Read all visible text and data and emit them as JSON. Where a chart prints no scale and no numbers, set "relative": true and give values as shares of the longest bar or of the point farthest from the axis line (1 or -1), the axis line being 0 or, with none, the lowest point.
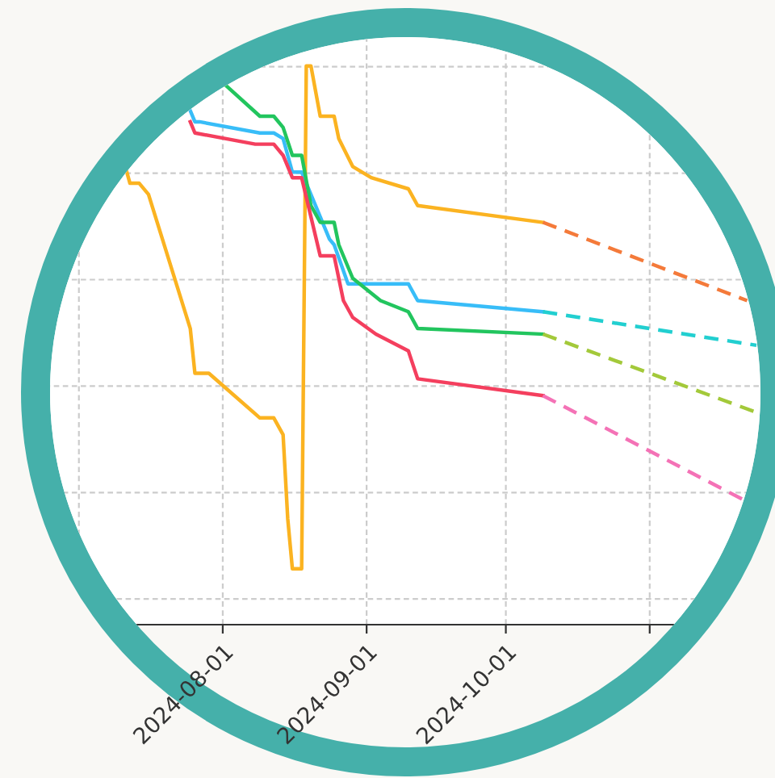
{
  "chart_data": {
    "type": "line",
    "relative": true,
    "grid": true,
    "tick_labels": "x",
    "xlim": [
      "2024-06-14",
      "2024-11-28"
    ],
    "xticks": [
      {
        "value": "2024-07-01",
        "label": null
      },
      {
        "value": "2024-08-01",
        "label": "2024-08-01"
      },
      {
        "value": "2024-09-01",
        "label": "2024-09-01"
      },
      {
        "value": "2024-10-01",
        "label": "2024-10-01"
      },
      {
        "value": "2024-11-01",
        "label": null
      }
    ],
    "series": [
      {
        "color": "#fbb321",
        "line_style": "solid",
        "x": [
          "2024-07-11",
          "2024-07-12",
          "2024-07-14",
          "2024-07-16",
          "2024-07-25",
          "2024-07-26",
          "2024-07-29",
          "2024-08-09",
          "2024-08-12",
          "2024-08-14",
          "2024-08-15",
          "2024-08-16",
          "2024-08-18",
          "2024-08-19",
          "2024-08-20",
          "2024-08-22",
          "2024-08-25",
          "2024-08-26",
          "2024-08-29",
          "2024-09-02",
          "2024-09-10",
          "2024-09-12",
          "2024-10-09"
        ],
        "values": [
          0.82,
          0.79,
          0.79,
          0.77,
          0.53,
          0.45,
          0.45,
          0.37,
          0.37,
          0.34,
          0.19,
          0.1,
          0.1,
          1.0,
          1.0,
          0.91,
          0.91,
          0.87,
          0.82,
          0.8,
          0.78,
          0.75,
          0.72
        ]
      },
      {
        "color": "#38bdf8",
        "line_style": "solid",
        "x": [
          "2024-07-25",
          "2024-07-26",
          "2024-07-27",
          "2024-08-09",
          "2024-08-12",
          "2024-08-14",
          "2024-08-16",
          "2024-08-18",
          "2024-08-24",
          "2024-08-25",
          "2024-08-28",
          "2024-09-10",
          "2024-09-12",
          "2024-10-09"
        ],
        "values": [
          0.92,
          0.9,
          0.9,
          0.88,
          0.88,
          0.87,
          0.81,
          0.81,
          0.69,
          0.68,
          0.61,
          0.61,
          0.58,
          0.56
        ]
      },
      {
        "color": "#22c55e",
        "line_style": "solid",
        "x": [
          "2024-08-01",
          "2024-08-09",
          "2024-08-12",
          "2024-08-14",
          "2024-08-16",
          "2024-08-18",
          "2024-08-20",
          "2024-08-22",
          "2024-08-25",
          "2024-08-26",
          "2024-08-29",
          "2024-09-04",
          "2024-09-10",
          "2024-09-12",
          "2024-10-09"
        ],
        "values": [
          0.97,
          0.91,
          0.91,
          0.89,
          0.84,
          0.84,
          0.75,
          0.72,
          0.72,
          0.68,
          0.62,
          0.58,
          0.56,
          0.53,
          0.52
        ]
      },
      {
        "color": "#f43f5e",
        "line_style": "solid",
        "x": [
          "2024-07-25",
          "2024-07-26",
          "2024-08-08",
          "2024-08-12",
          "2024-08-14",
          "2024-08-16",
          "2024-08-18",
          "2024-08-22",
          "2024-08-25",
          "2024-08-27",
          "2024-08-29",
          "2024-09-03",
          "2024-09-10",
          "2024-09-12",
          "2024-10-09"
        ],
        "values": [
          0.9,
          0.88,
          0.86,
          0.86,
          0.84,
          0.8,
          0.8,
          0.66,
          0.66,
          0.58,
          0.55,
          0.52,
          0.49,
          0.44,
          0.41
        ]
      },
      {
        "color": "#f47a3a",
        "line_style": "dashed",
        "x": [
          "2024-10-09",
          "2024-11-22"
        ],
        "values": [
          0.72,
          0.58
        ]
      },
      {
        "color": "#22cfd0",
        "line_style": "dashed",
        "x": [
          "2024-10-09",
          "2024-11-24"
        ],
        "values": [
          0.56,
          0.5
        ]
      },
      {
        "color": "#a3c93a",
        "line_style": "dashed",
        "x": [
          "2024-10-09",
          "2024-11-24"
        ],
        "values": [
          0.52,
          0.38
        ]
      },
      {
        "color": "#f472b6",
        "line_style": "dashed",
        "x": [
          "2024-10-09",
          "2024-11-22"
        ],
        "values": [
          0.41,
          0.22
        ]
      }
    ]
  }
}
